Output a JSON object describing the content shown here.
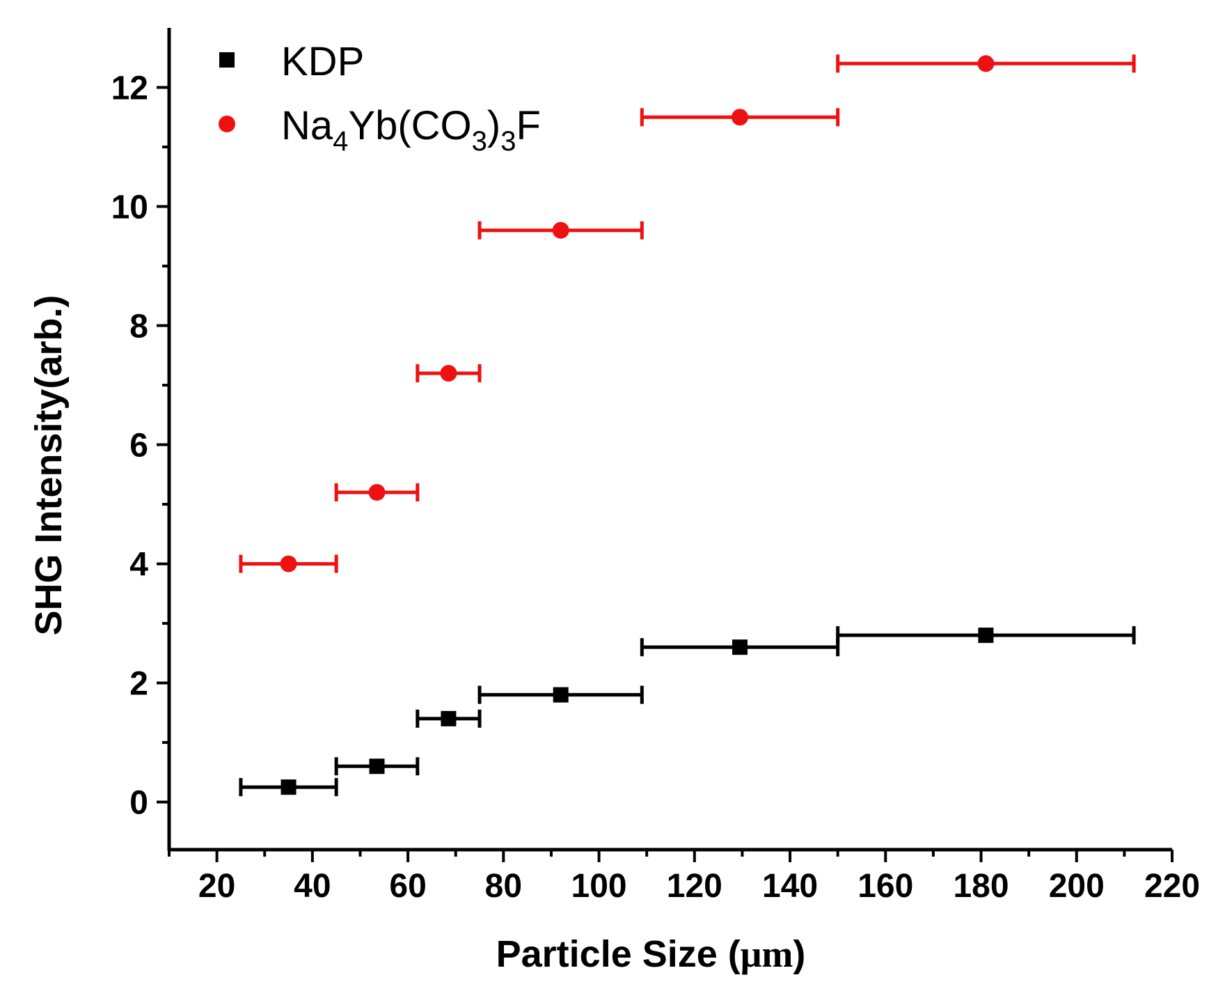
{
  "chart_data": {
    "type": "scatter",
    "title": "",
    "xlabel": "Particle Size (μm)",
    "xlabel_main": "Particle Size (",
    "xlabel_unit": "μm",
    "xlabel_close": ")",
    "ylabel": "SHG Intensity(arb.)",
    "xlim": [
      10,
      220
    ],
    "ylim": [
      -0.8,
      13
    ],
    "x_major_ticks": [
      20,
      40,
      60,
      80,
      100,
      120,
      140,
      160,
      180,
      200,
      220
    ],
    "x_minor_ticks": [
      10,
      30,
      50,
      70,
      90,
      110,
      130,
      150,
      170,
      190,
      210
    ],
    "y_major_ticks": [
      0,
      2,
      4,
      6,
      8,
      10,
      12
    ],
    "y_minor_ticks": [
      1,
      3,
      5,
      7,
      9,
      11
    ],
    "grid": false,
    "legend_position": "top-left",
    "series": [
      {
        "name": "KDP",
        "marker": "square",
        "color": "#000000",
        "points": [
          {
            "x": 35,
            "y": 0.25,
            "xmin": 25,
            "xmax": 45
          },
          {
            "x": 53.5,
            "y": 0.6,
            "xmin": 45,
            "xmax": 62
          },
          {
            "x": 68.5,
            "y": 1.4,
            "xmin": 62,
            "xmax": 75
          },
          {
            "x": 92,
            "y": 1.8,
            "xmin": 75,
            "xmax": 109
          },
          {
            "x": 129.5,
            "y": 2.6,
            "xmin": 109,
            "xmax": 150
          },
          {
            "x": 181,
            "y": 2.8,
            "xmin": 150,
            "xmax": 212
          }
        ]
      },
      {
        "name": "Na4Yb(CO3)3F",
        "marker": "circle",
        "color": "#ee1111",
        "points": [
          {
            "x": 35,
            "y": 4.0,
            "xmin": 25,
            "xmax": 45
          },
          {
            "x": 53.5,
            "y": 5.2,
            "xmin": 45,
            "xmax": 62
          },
          {
            "x": 68.5,
            "y": 7.2,
            "xmin": 62,
            "xmax": 75
          },
          {
            "x": 92,
            "y": 9.6,
            "xmin": 75,
            "xmax": 109
          },
          {
            "x": 129.5,
            "y": 11.5,
            "xmin": 109,
            "xmax": 150
          },
          {
            "x": 181,
            "y": 12.4,
            "xmin": 150,
            "xmax": 212
          }
        ]
      }
    ],
    "legend": {
      "kdp_label": "KDP",
      "nayb_parts": {
        "a": "Na",
        "s1": "4",
        "b": "Yb(CO",
        "s2": "3",
        "c": ")",
        "s3": "3",
        "d": "F"
      }
    }
  }
}
